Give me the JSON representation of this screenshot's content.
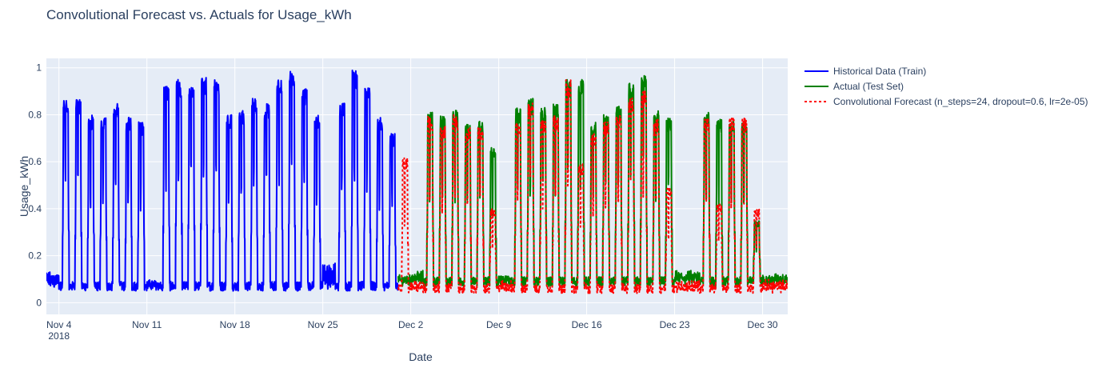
{
  "chart_data": {
    "type": "line",
    "title": "Convolutional Forecast vs. Actuals for Usage_kWh",
    "xlabel": "Date",
    "ylabel": "Usage_kWh",
    "x_range": [
      "2018-11-03",
      "2018-12-31"
    ],
    "y_range": [
      -0.05,
      1.04
    ],
    "grid": true,
    "legend_position": "right",
    "x_ticks": [
      {
        "date": "2018-11-04",
        "label": "Nov 4",
        "sublabel": "2018"
      },
      {
        "date": "2018-11-11",
        "label": "Nov 11"
      },
      {
        "date": "2018-11-18",
        "label": "Nov 18"
      },
      {
        "date": "2018-11-25",
        "label": "Nov 25"
      },
      {
        "date": "2018-12-02",
        "label": "Dec 2"
      },
      {
        "date": "2018-12-09",
        "label": "Dec 9"
      },
      {
        "date": "2018-12-16",
        "label": "Dec 16"
      },
      {
        "date": "2018-12-23",
        "label": "Dec 23"
      },
      {
        "date": "2018-12-30",
        "label": "Dec 30"
      }
    ],
    "y_ticks": [
      {
        "value": 0,
        "label": "0"
      },
      {
        "value": 0.2,
        "label": "0.2"
      },
      {
        "value": 0.4,
        "label": "0.4"
      },
      {
        "value": 0.6,
        "label": "0.6"
      },
      {
        "value": 0.8,
        "label": "0.8"
      },
      {
        "value": 1,
        "label": "1"
      }
    ],
    "series": [
      {
        "name": "Historical Data (Train)",
        "color": "#0000ff",
        "dash": "solid",
        "base": 0.07,
        "daily_peaks": [
          {
            "date": "2018-11-03",
            "peak": 0.12
          },
          {
            "date": "2018-11-04",
            "peak": 0.86
          },
          {
            "date": "2018-11-05",
            "peak": 0.87
          },
          {
            "date": "2018-11-06",
            "peak": 0.8
          },
          {
            "date": "2018-11-07",
            "peak": 0.79
          },
          {
            "date": "2018-11-08",
            "peak": 0.85
          },
          {
            "date": "2018-11-09",
            "peak": 0.79
          },
          {
            "date": "2018-11-10",
            "peak": 0.77
          },
          {
            "date": "2018-11-11",
            "peak": 0.08
          },
          {
            "date": "2018-11-12",
            "peak": 0.93
          },
          {
            "date": "2018-11-13",
            "peak": 0.95
          },
          {
            "date": "2018-11-14",
            "peak": 0.92
          },
          {
            "date": "2018-11-15",
            "peak": 0.96
          },
          {
            "date": "2018-11-16",
            "peak": 0.95
          },
          {
            "date": "2018-11-17",
            "peak": 0.8
          },
          {
            "date": "2018-11-18",
            "peak": 0.82
          },
          {
            "date": "2018-11-19",
            "peak": 0.87
          },
          {
            "date": "2018-11-20",
            "peak": 0.85
          },
          {
            "date": "2018-11-21",
            "peak": 0.95
          },
          {
            "date": "2018-11-22",
            "peak": 0.99
          },
          {
            "date": "2018-11-23",
            "peak": 0.91
          },
          {
            "date": "2018-11-24",
            "peak": 0.8
          },
          {
            "date": "2018-11-25",
            "peak": 0.16
          },
          {
            "date": "2018-11-26",
            "peak": 0.85
          },
          {
            "date": "2018-11-27",
            "peak": 0.99
          },
          {
            "date": "2018-11-28",
            "peak": 0.92
          },
          {
            "date": "2018-11-29",
            "peak": 0.79
          },
          {
            "date": "2018-11-30",
            "peak": 0.72
          }
        ]
      },
      {
        "name": "Actual (Test Set)",
        "color": "#008000",
        "dash": "solid",
        "base": 0.09,
        "daily_peaks": [
          {
            "date": "2018-12-01",
            "peak": 0.1
          },
          {
            "date": "2018-12-02",
            "peak": 0.12
          },
          {
            "date": "2018-12-03",
            "peak": 0.81
          },
          {
            "date": "2018-12-04",
            "peak": 0.8
          },
          {
            "date": "2018-12-05",
            "peak": 0.82
          },
          {
            "date": "2018-12-06",
            "peak": 0.77
          },
          {
            "date": "2018-12-07",
            "peak": 0.78
          },
          {
            "date": "2018-12-08",
            "peak": 0.66
          },
          {
            "date": "2018-12-09",
            "peak": 0.1
          },
          {
            "date": "2018-12-10",
            "peak": 0.83
          },
          {
            "date": "2018-12-11",
            "peak": 0.87
          },
          {
            "date": "2018-12-12",
            "peak": 0.83
          },
          {
            "date": "2018-12-13",
            "peak": 0.85
          },
          {
            "date": "2018-12-14",
            "peak": 0.95
          },
          {
            "date": "2018-12-15",
            "peak": 0.95
          },
          {
            "date": "2018-12-16",
            "peak": 0.77
          },
          {
            "date": "2018-12-17",
            "peak": 0.8
          },
          {
            "date": "2018-12-18",
            "peak": 0.84
          },
          {
            "date": "2018-12-19",
            "peak": 0.95
          },
          {
            "date": "2018-12-20",
            "peak": 0.97
          },
          {
            "date": "2018-12-21",
            "peak": 0.82
          },
          {
            "date": "2018-12-22",
            "peak": 0.79
          },
          {
            "date": "2018-12-23",
            "peak": 0.12
          },
          {
            "date": "2018-12-24",
            "peak": 0.12
          },
          {
            "date": "2018-12-25",
            "peak": 0.81
          },
          {
            "date": "2018-12-26",
            "peak": 0.78
          },
          {
            "date": "2018-12-27",
            "peak": 0.78
          },
          {
            "date": "2018-12-28",
            "peak": 0.78
          },
          {
            "date": "2018-12-29",
            "peak": 0.35
          },
          {
            "date": "2018-12-30",
            "peak": 0.1
          },
          {
            "date": "2018-12-31",
            "peak": 0.11
          }
        ]
      },
      {
        "name": "Convolutional Forecast (n_steps=24, dropout=0.6, lr=2e-05)",
        "color": "#ff0000",
        "dash": "dot",
        "base": 0.06,
        "daily_peaks": [
          {
            "date": "2018-12-01",
            "peak": 0.62
          },
          {
            "date": "2018-12-02",
            "peak": 0.08
          },
          {
            "date": "2018-12-03",
            "peak": 0.8
          },
          {
            "date": "2018-12-04",
            "peak": 0.75
          },
          {
            "date": "2018-12-05",
            "peak": 0.8
          },
          {
            "date": "2018-12-06",
            "peak": 0.75
          },
          {
            "date": "2018-12-07",
            "peak": 0.75
          },
          {
            "date": "2018-12-08",
            "peak": 0.4
          },
          {
            "date": "2018-12-09",
            "peak": 0.08
          },
          {
            "date": "2018-12-10",
            "peak": 0.77
          },
          {
            "date": "2018-12-11",
            "peak": 0.85
          },
          {
            "date": "2018-12-12",
            "peak": 0.78
          },
          {
            "date": "2018-12-13",
            "peak": 0.8
          },
          {
            "date": "2018-12-14",
            "peak": 0.95
          },
          {
            "date": "2018-12-15",
            "peak": 0.59
          },
          {
            "date": "2018-12-16",
            "peak": 0.72
          },
          {
            "date": "2018-12-17",
            "peak": 0.77
          },
          {
            "date": "2018-12-18",
            "peak": 0.8
          },
          {
            "date": "2018-12-19",
            "peak": 0.88
          },
          {
            "date": "2018-12-20",
            "peak": 0.9
          },
          {
            "date": "2018-12-21",
            "peak": 0.78
          },
          {
            "date": "2018-12-22",
            "peak": 0.49
          },
          {
            "date": "2018-12-23",
            "peak": 0.08
          },
          {
            "date": "2018-12-24",
            "peak": 0.08
          },
          {
            "date": "2018-12-25",
            "peak": 0.79
          },
          {
            "date": "2018-12-26",
            "peak": 0.42
          },
          {
            "date": "2018-12-27",
            "peak": 0.79
          },
          {
            "date": "2018-12-28",
            "peak": 0.79
          },
          {
            "date": "2018-12-29",
            "peak": 0.4
          },
          {
            "date": "2018-12-30",
            "peak": 0.08
          },
          {
            "date": "2018-12-31",
            "peak": 0.08
          }
        ]
      }
    ]
  }
}
